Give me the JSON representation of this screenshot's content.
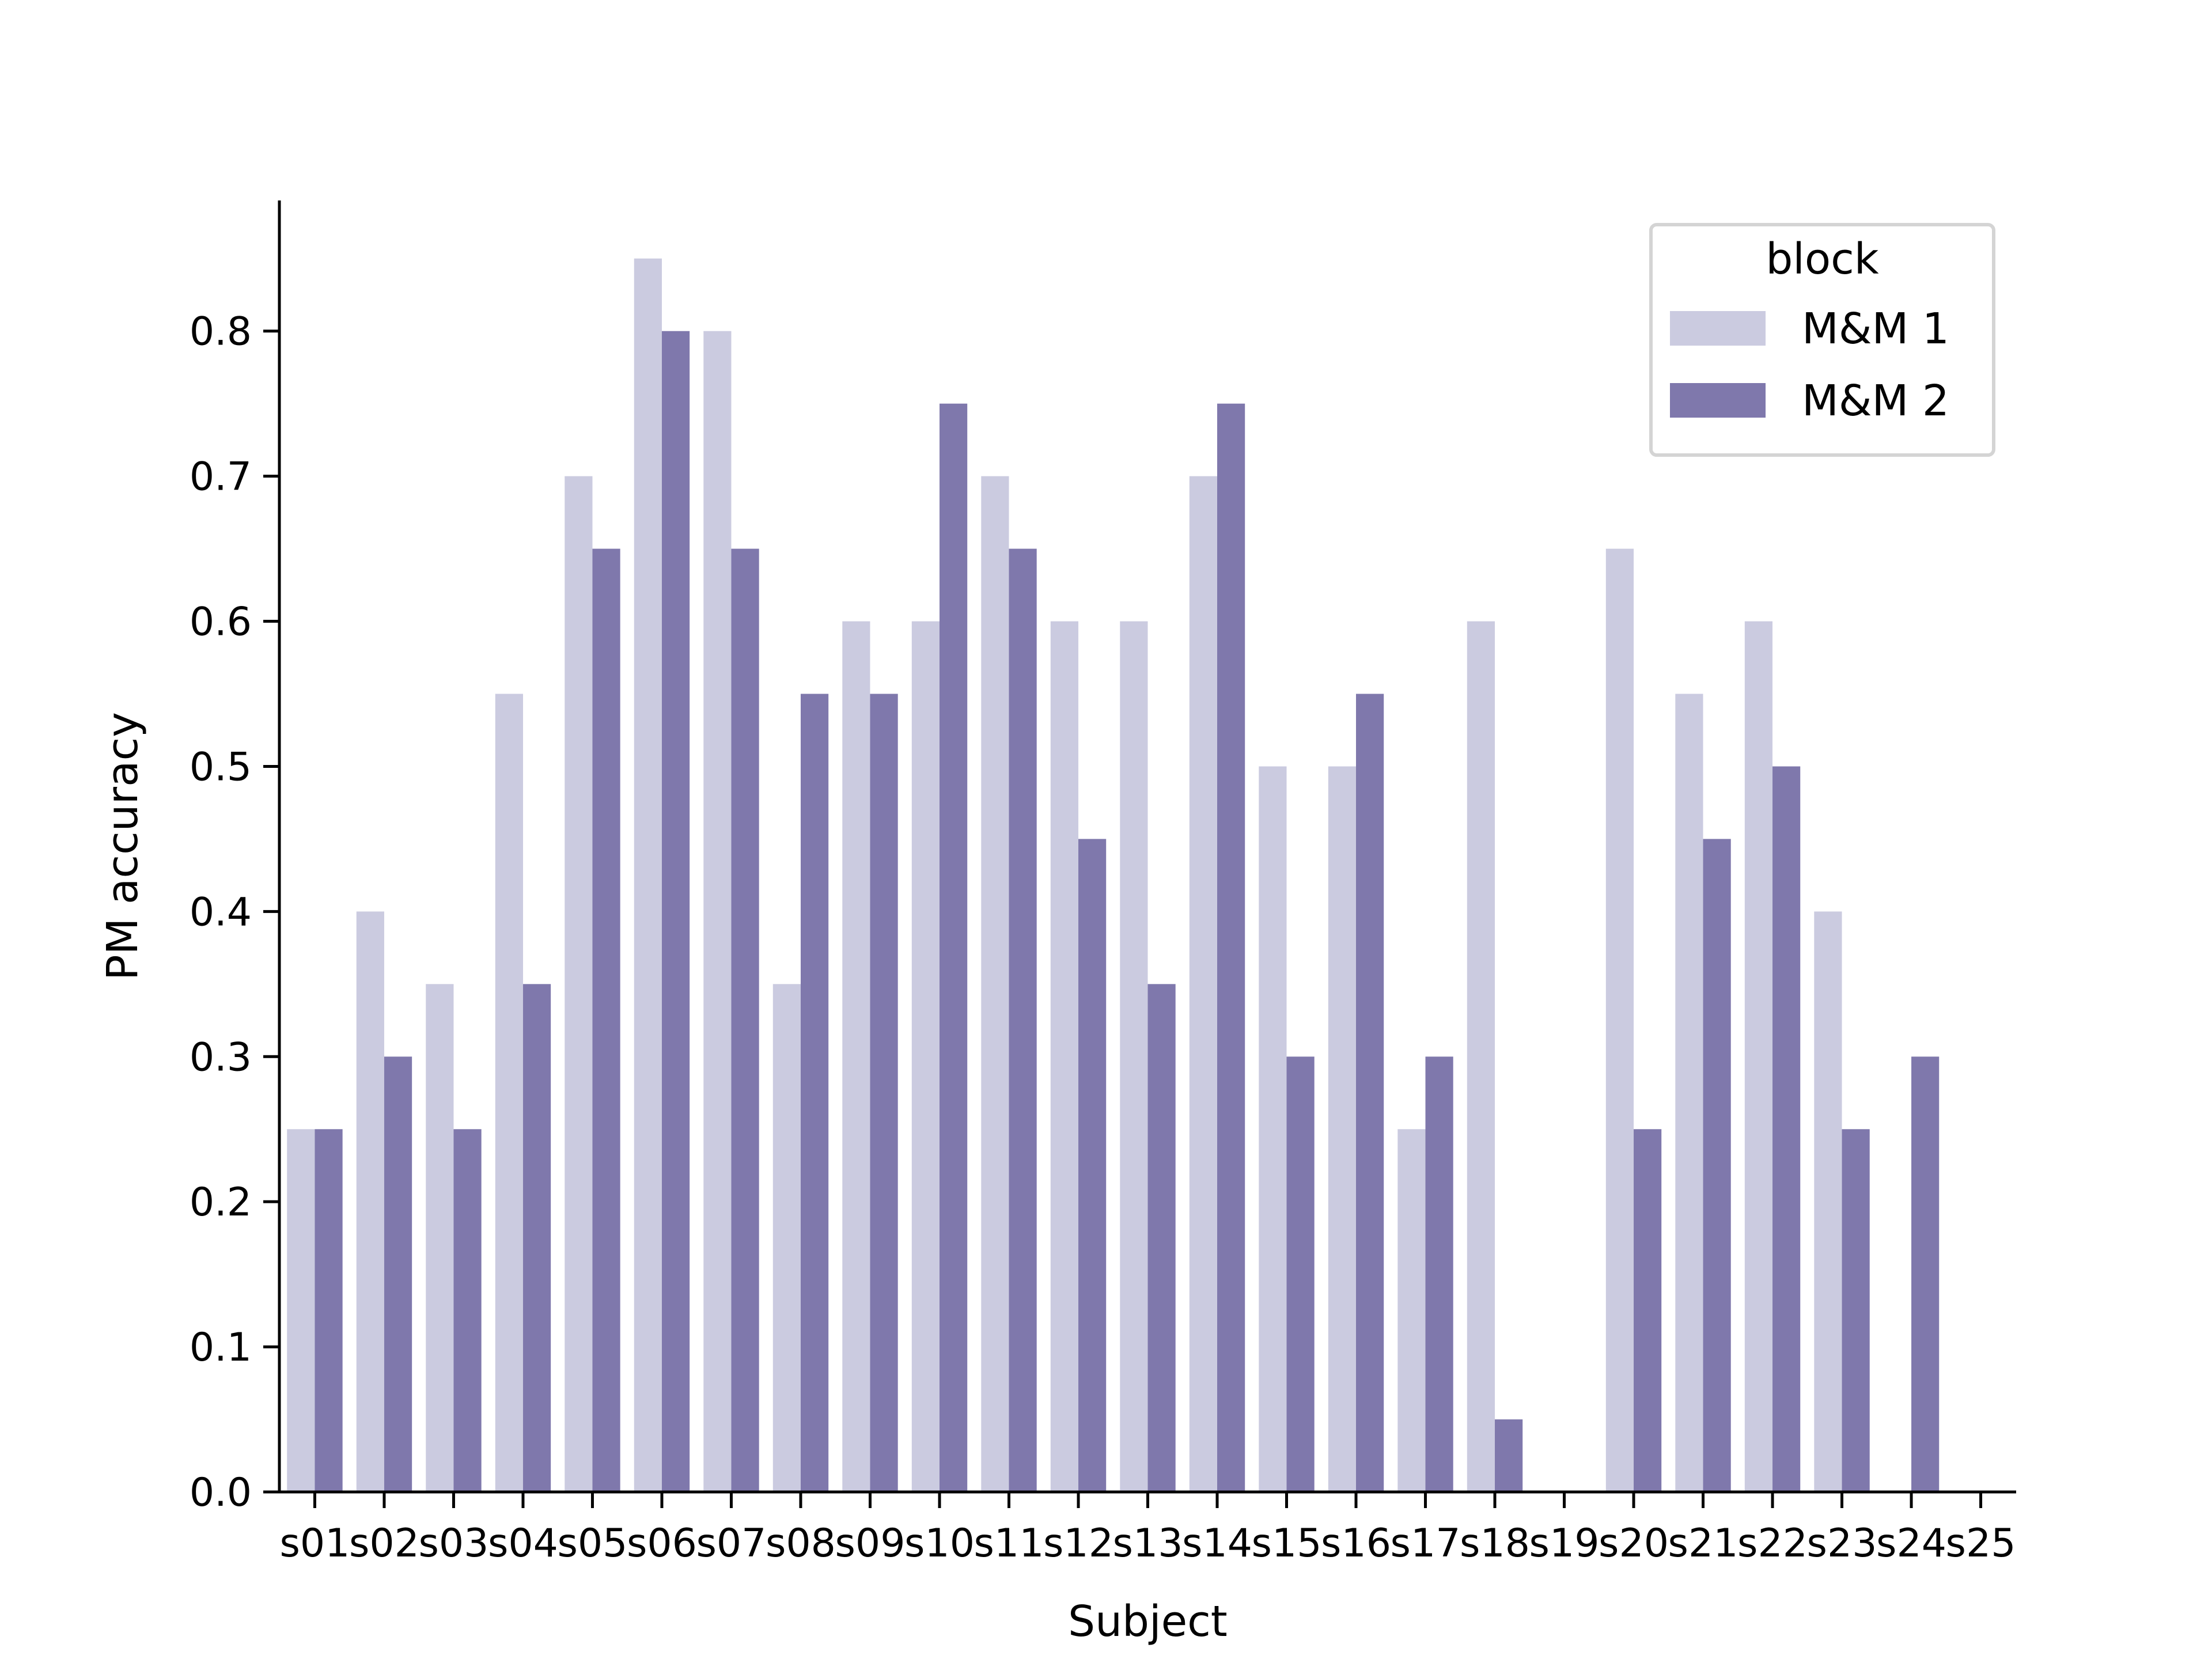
{
  "chart_data": {
    "type": "bar",
    "xlabel": "Subject",
    "ylabel": "PM accuracy",
    "ylim": [
      0,
      0.89
    ],
    "yticks": [
      0.0,
      0.1,
      0.2,
      0.3,
      0.4,
      0.5,
      0.6,
      0.7,
      0.8
    ],
    "ytick_labels": [
      "0.0",
      "0.1",
      "0.2",
      "0.3",
      "0.4",
      "0.5",
      "0.6",
      "0.7",
      "0.8"
    ],
    "grid": false,
    "legend": {
      "title": "block",
      "placement": "top-right"
    },
    "categories": [
      "s01",
      "s02",
      "s03",
      "s04",
      "s05",
      "s06",
      "s07",
      "s08",
      "s09",
      "s10",
      "s11",
      "s12",
      "s13",
      "s14",
      "s15",
      "s16",
      "s17",
      "s18",
      "s19",
      "s20",
      "s21",
      "s22",
      "s23",
      "s24",
      "s25"
    ],
    "series": [
      {
        "name": "M&M 1",
        "color": "#cbcbe0",
        "values": [
          0.25,
          0.4,
          0.35,
          0.55,
          0.7,
          0.85,
          0.8,
          0.35,
          0.6,
          0.6,
          0.7,
          0.6,
          0.6,
          0.7,
          0.5,
          0.5,
          0.25,
          0.6,
          0.0,
          0.65,
          0.55,
          0.6,
          0.4,
          0.0,
          0.0
        ]
      },
      {
        "name": "M&M 2",
        "color": "#7f78ac",
        "values": [
          0.25,
          0.3,
          0.25,
          0.35,
          0.65,
          0.8,
          0.65,
          0.55,
          0.55,
          0.75,
          0.65,
          0.45,
          0.35,
          0.75,
          0.3,
          0.55,
          0.3,
          0.05,
          0.0,
          0.25,
          0.45,
          0.5,
          0.25,
          0.3,
          0.0
        ]
      }
    ]
  }
}
